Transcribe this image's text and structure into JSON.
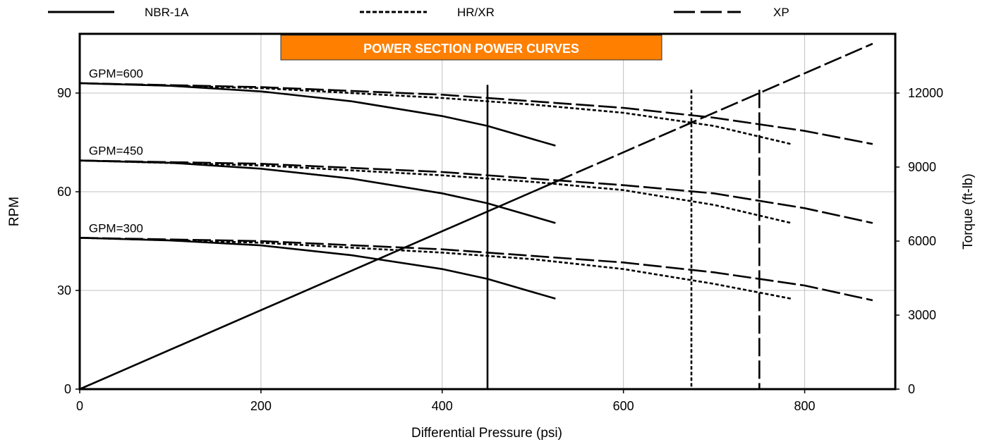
{
  "chart_data": {
    "type": "line",
    "title": "POWER SECTION POWER CURVES",
    "colors": {
      "title_bg": "#ff7f00",
      "title_text": "#ffffff",
      "lines": "#000000",
      "grid": "#c0c0c0"
    },
    "xlabel": "Differential Pressure (psi)",
    "ylabel": "RPM",
    "y2label": "Torque (ft-lb)",
    "xlim": [
      0,
      900
    ],
    "ylim": [
      0,
      108
    ],
    "y2lim": [
      0,
      14400
    ],
    "x_ticks": [
      0,
      200,
      400,
      600,
      800
    ],
    "y_ticks": [
      0,
      30,
      60,
      90
    ],
    "y2_ticks": [
      0,
      3000,
      6000,
      9000,
      12000
    ],
    "x_tick_labels": [
      "0",
      "200",
      "400",
      "600",
      "800"
    ],
    "y_tick_labels": [
      "0",
      "30",
      "60",
      "90"
    ],
    "y2_tick_labels": [
      "0",
      "3000",
      "6000",
      "9000",
      "12000"
    ],
    "grid": true,
    "legend": {
      "placement": "top",
      "entries": [
        {
          "name": "NBR-1A",
          "style": "solid"
        },
        {
          "name": "HR/XR",
          "style": "dotted"
        },
        {
          "name": "XP",
          "style": "dashdot"
        }
      ]
    },
    "curve_labels": [
      {
        "text": "GPM=600",
        "x": 10,
        "y": 93
      },
      {
        "text": "GPM=450",
        "x": 10,
        "y": 69.5
      },
      {
        "text": "GPM=300",
        "x": 10,
        "y": 46
      }
    ],
    "series": [
      {
        "name": "NBR-1A GPM=600",
        "style": "solid",
        "axis": "left",
        "points": [
          [
            0,
            93
          ],
          [
            100,
            92.2
          ],
          [
            200,
            90.5
          ],
          [
            300,
            87.5
          ],
          [
            400,
            83
          ],
          [
            450,
            80
          ],
          [
            525,
            74
          ]
        ]
      },
      {
        "name": "NBR-1A GPM=450",
        "style": "solid",
        "axis": "left",
        "points": [
          [
            0,
            69.5
          ],
          [
            100,
            68.8
          ],
          [
            200,
            67
          ],
          [
            300,
            64
          ],
          [
            400,
            59.5
          ],
          [
            450,
            56.5
          ],
          [
            525,
            50.5
          ]
        ]
      },
      {
        "name": "NBR-1A GPM=300",
        "style": "solid",
        "axis": "left",
        "points": [
          [
            0,
            46
          ],
          [
            100,
            45.2
          ],
          [
            200,
            43.7
          ],
          [
            300,
            40.7
          ],
          [
            400,
            36.5
          ],
          [
            450,
            33.5
          ],
          [
            525,
            27.5
          ]
        ]
      },
      {
        "name": "HR/XR GPM=600",
        "style": "dotted",
        "axis": "left",
        "points": [
          [
            0,
            93
          ],
          [
            200,
            91.5
          ],
          [
            400,
            88.5
          ],
          [
            500,
            86.5
          ],
          [
            600,
            84
          ],
          [
            700,
            80
          ],
          [
            785,
            74.5
          ]
        ]
      },
      {
        "name": "HR/XR GPM=450",
        "style": "dotted",
        "axis": "left",
        "points": [
          [
            0,
            69.5
          ],
          [
            200,
            68
          ],
          [
            400,
            65
          ],
          [
            500,
            63
          ],
          [
            600,
            60.5
          ],
          [
            700,
            56
          ],
          [
            785,
            50.5
          ]
        ]
      },
      {
        "name": "HR/XR GPM=300",
        "style": "dotted",
        "axis": "left",
        "points": [
          [
            0,
            46
          ],
          [
            200,
            44.5
          ],
          [
            400,
            41.5
          ],
          [
            500,
            39.5
          ],
          [
            600,
            36.5
          ],
          [
            700,
            32
          ],
          [
            785,
            27.5
          ]
        ]
      },
      {
        "name": "XP GPM=600",
        "style": "dashdot",
        "axis": "left",
        "points": [
          [
            0,
            93
          ],
          [
            200,
            91.8
          ],
          [
            400,
            89.5
          ],
          [
            600,
            85.5
          ],
          [
            700,
            82.5
          ],
          [
            800,
            78.5
          ],
          [
            875,
            74.5
          ]
        ]
      },
      {
        "name": "XP GPM=450",
        "style": "dashdot",
        "axis": "left",
        "points": [
          [
            0,
            69.5
          ],
          [
            200,
            68.5
          ],
          [
            400,
            66
          ],
          [
            600,
            62
          ],
          [
            700,
            59.5
          ],
          [
            800,
            55
          ],
          [
            875,
            50.5
          ]
        ]
      },
      {
        "name": "XP GPM=300",
        "style": "dashdot",
        "axis": "left",
        "points": [
          [
            0,
            46
          ],
          [
            200,
            45
          ],
          [
            400,
            42.5
          ],
          [
            600,
            38.5
          ],
          [
            700,
            35.5
          ],
          [
            800,
            31.5
          ],
          [
            875,
            27
          ]
        ]
      },
      {
        "name": "NBR-1A torque",
        "style": "solid",
        "axis": "right",
        "points": [
          [
            0,
            0
          ],
          [
            525,
            8400
          ]
        ]
      },
      {
        "name": "XP torque",
        "style": "dashdot",
        "axis": "right",
        "points": [
          [
            525,
            8400
          ],
          [
            875,
            14000
          ]
        ]
      }
    ],
    "vertical_lines": [
      {
        "name": "NBR-1A max pressure",
        "style": "solid",
        "x": 450,
        "y_top": 92.5
      },
      {
        "name": "HR/XR max pressure",
        "style": "dotted",
        "x": 675,
        "y_top": 91
      },
      {
        "name": "XP max pressure",
        "style": "dashdot",
        "x": 750,
        "y_top": 91
      }
    ]
  }
}
